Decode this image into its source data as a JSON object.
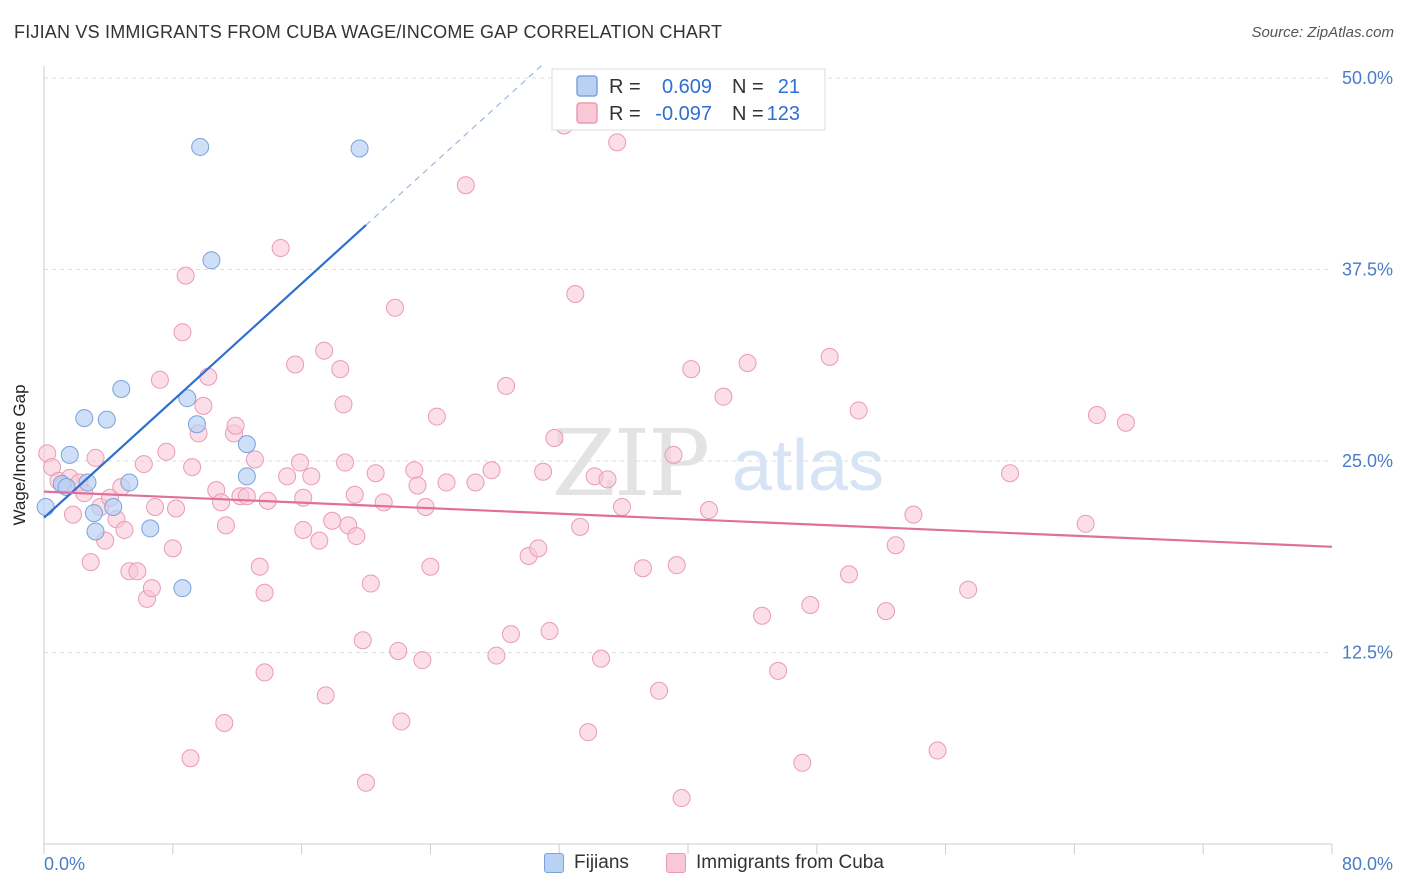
{
  "header": {
    "title": "FIJIAN VS IMMIGRANTS FROM CUBA WAGE/INCOME GAP CORRELATION CHART",
    "source": "Source: ZipAtlas.com"
  },
  "watermark": {
    "zip": "ZIP",
    "atlas": "atlas"
  },
  "colors": {
    "blue_fill": "#b9d2f3",
    "blue_stroke": "#7aa3db",
    "blue_line": "#2f6fd1",
    "pink_fill": "#f8c8d7",
    "pink_stroke": "#eb9ab5",
    "pink_line": "#e0709a",
    "tick_text": "#4a7cc7",
    "grid": "#dddddd"
  },
  "legend": {
    "rows": [
      {
        "r_label": "R =",
        "r_value": "0.609",
        "n_label": "N =",
        "n_value": "21"
      },
      {
        "r_label": "R =",
        "r_value": "-0.097",
        "n_label": "N =",
        "n_value": "123"
      }
    ]
  },
  "chart_data": {
    "type": "scatter",
    "title": "FIJIAN VS IMMIGRANTS FROM CUBA WAGE/INCOME GAP CORRELATION CHART",
    "xlabel": "",
    "ylabel": "Wage/Income Gap",
    "xlim": [
      0,
      80
    ],
    "ylim": [
      0,
      50
    ],
    "x_tick_labels": [
      "0.0%",
      "80.0%"
    ],
    "y_tick_labels": [
      "12.5%",
      "25.0%",
      "37.5%",
      "50.0%"
    ],
    "y_ticks": [
      12.5,
      25.0,
      37.5,
      50.0
    ],
    "grid": true,
    "legend_position": "top-center",
    "series": [
      {
        "name": "Fijians",
        "r": 0.609,
        "n": 21,
        "trend": {
          "x": [
            0,
            20
          ],
          "y": [
            21.3,
            40.4
          ],
          "dashed_extension_to": [
            31,
            50.9
          ]
        },
        "points": [
          [
            0.1,
            22.0
          ],
          [
            1.1,
            23.5
          ],
          [
            1.4,
            23.3
          ],
          [
            1.6,
            25.4
          ],
          [
            2.5,
            27.8
          ],
          [
            2.7,
            23.6
          ],
          [
            3.1,
            21.6
          ],
          [
            3.2,
            20.4
          ],
          [
            3.9,
            27.7
          ],
          [
            4.3,
            22.0
          ],
          [
            4.8,
            29.7
          ],
          [
            5.3,
            23.6
          ],
          [
            6.6,
            20.6
          ],
          [
            8.6,
            16.7
          ],
          [
            8.9,
            29.1
          ],
          [
            9.5,
            27.4
          ],
          [
            9.7,
            45.5
          ],
          [
            10.4,
            38.1
          ],
          [
            12.6,
            26.1
          ],
          [
            12.6,
            24.0
          ],
          [
            19.6,
            45.4
          ]
        ]
      },
      {
        "name": "Immigrants from Cuba",
        "r": -0.097,
        "n": 123,
        "trend": {
          "x": [
            0,
            80
          ],
          "y": [
            23.0,
            19.4
          ]
        },
        "points": [
          [
            0.2,
            25.5
          ],
          [
            0.5,
            24.6
          ],
          [
            0.9,
            23.7
          ],
          [
            1.2,
            23.4
          ],
          [
            1.6,
            23.9
          ],
          [
            1.8,
            21.5
          ],
          [
            2.2,
            23.6
          ],
          [
            2.5,
            22.9
          ],
          [
            2.9,
            18.4
          ],
          [
            3.2,
            25.2
          ],
          [
            3.5,
            22.0
          ],
          [
            3.8,
            19.8
          ],
          [
            4.1,
            22.6
          ],
          [
            4.5,
            21.2
          ],
          [
            4.8,
            23.3
          ],
          [
            5.0,
            20.5
          ],
          [
            5.3,
            17.8
          ],
          [
            5.8,
            17.8
          ],
          [
            6.2,
            24.8
          ],
          [
            6.4,
            16.0
          ],
          [
            6.7,
            16.7
          ],
          [
            6.9,
            22.0
          ],
          [
            7.2,
            30.3
          ],
          [
            7.6,
            25.6
          ],
          [
            8.0,
            19.3
          ],
          [
            8.2,
            21.9
          ],
          [
            8.6,
            33.4
          ],
          [
            8.8,
            37.1
          ],
          [
            9.2,
            24.6
          ],
          [
            9.6,
            26.8
          ],
          [
            9.9,
            28.6
          ],
          [
            10.2,
            30.5
          ],
          [
            10.7,
            23.1
          ],
          [
            11.0,
            22.3
          ],
          [
            11.3,
            20.8
          ],
          [
            11.8,
            26.8
          ],
          [
            11.9,
            27.3
          ],
          [
            12.2,
            22.7
          ],
          [
            12.6,
            22.7
          ],
          [
            13.1,
            25.1
          ],
          [
            13.4,
            18.1
          ],
          [
            13.7,
            16.4
          ],
          [
            13.9,
            22.4
          ],
          [
            14.7,
            38.9
          ],
          [
            15.1,
            24.0
          ],
          [
            15.6,
            31.3
          ],
          [
            15.9,
            24.9
          ],
          [
            16.1,
            22.6
          ],
          [
            16.1,
            20.5
          ],
          [
            16.6,
            24.0
          ],
          [
            17.1,
            19.8
          ],
          [
            17.4,
            32.2
          ],
          [
            17.9,
            21.1
          ],
          [
            18.4,
            31.0
          ],
          [
            18.6,
            28.7
          ],
          [
            18.9,
            20.8
          ],
          [
            19.3,
            22.8
          ],
          [
            19.4,
            20.1
          ],
          [
            19.8,
            13.3
          ],
          [
            20.3,
            17.0
          ],
          [
            20.6,
            24.2
          ],
          [
            21.1,
            22.3
          ],
          [
            22.0,
            12.6
          ],
          [
            23.0,
            24.4
          ],
          [
            23.2,
            23.4
          ],
          [
            23.7,
            22.0
          ],
          [
            24.0,
            18.1
          ],
          [
            24.4,
            27.9
          ],
          [
            25.0,
            23.6
          ],
          [
            26.8,
            23.6
          ],
          [
            27.8,
            24.4
          ],
          [
            28.1,
            12.3
          ],
          [
            28.7,
            29.9
          ],
          [
            29.0,
            13.7
          ],
          [
            30.1,
            18.8
          ],
          [
            30.7,
            19.3
          ],
          [
            31.0,
            24.3
          ],
          [
            31.4,
            13.9
          ],
          [
            31.7,
            26.5
          ],
          [
            32.3,
            46.9
          ],
          [
            33.0,
            35.9
          ],
          [
            33.3,
            20.7
          ],
          [
            33.8,
            7.3
          ],
          [
            34.2,
            24.0
          ],
          [
            34.6,
            12.1
          ],
          [
            35.0,
            23.8
          ],
          [
            35.6,
            45.8
          ],
          [
            35.9,
            22.0
          ],
          [
            37.2,
            18.0
          ],
          [
            38.2,
            10.0
          ],
          [
            39.1,
            25.4
          ],
          [
            39.3,
            18.2
          ],
          [
            39.6,
            3.0
          ],
          [
            40.2,
            31.0
          ],
          [
            41.3,
            21.8
          ],
          [
            42.2,
            29.2
          ],
          [
            43.7,
            31.4
          ],
          [
            44.6,
            14.9
          ],
          [
            45.6,
            11.3
          ],
          [
            47.1,
            5.3
          ],
          [
            47.6,
            15.6
          ],
          [
            48.8,
            31.8
          ],
          [
            50.0,
            17.6
          ],
          [
            50.6,
            28.3
          ],
          [
            52.3,
            15.2
          ],
          [
            52.9,
            19.5
          ],
          [
            54.0,
            21.5
          ],
          [
            55.5,
            6.1
          ],
          [
            57.4,
            16.6
          ],
          [
            60.0,
            24.2
          ],
          [
            64.7,
            20.9
          ],
          [
            65.4,
            28.0
          ],
          [
            67.2,
            27.5
          ],
          [
            11.2,
            7.9
          ],
          [
            9.1,
            5.6
          ],
          [
            17.5,
            9.7
          ],
          [
            20.0,
            4.0
          ],
          [
            22.2,
            8.0
          ],
          [
            23.5,
            12.0
          ],
          [
            26.2,
            43.0
          ],
          [
            21.8,
            35.0
          ],
          [
            18.7,
            24.9
          ],
          [
            13.7,
            11.2
          ]
        ]
      }
    ]
  },
  "bottom_legend": {
    "items": [
      {
        "label": "Fijians"
      },
      {
        "label": "Immigrants from Cuba"
      }
    ]
  }
}
